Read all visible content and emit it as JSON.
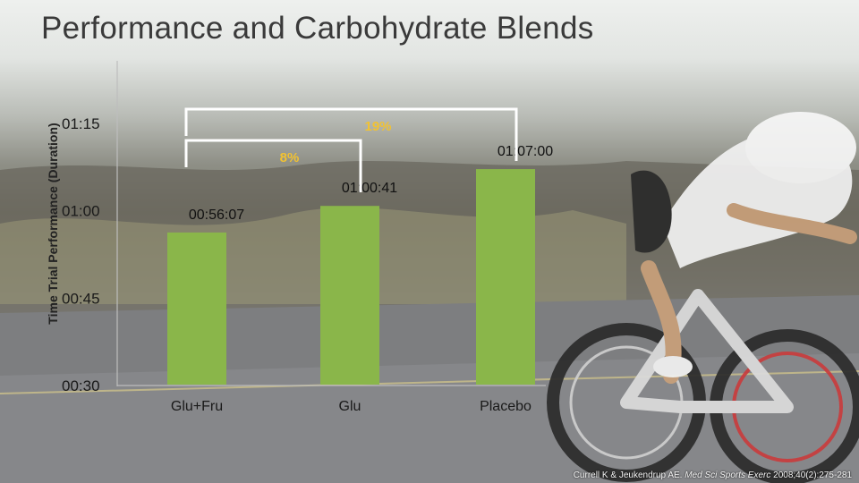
{
  "slide": {
    "title": "Performance and Carbohydrate Blends",
    "citation_authors": "Currell K & Jeukendrup AE.",
    "citation_journal": "Med Sci Sports Exerc",
    "citation_details": " 2008;40(2):275-281"
  },
  "colors": {
    "bar": "#8ab64a",
    "bracket": "#ffffff",
    "percent": "#f1c232",
    "axis_text": "#1a1a1a",
    "title": "#3a3a3a"
  },
  "chart_data": {
    "type": "bar",
    "title": "Performance and Carbohydrate Blends",
    "ylabel": "Time Trial Performance (Duration)",
    "xlabel": "",
    "categories": [
      "Glu+Fru",
      "Glu",
      "Placebo"
    ],
    "values_seconds": [
      3367,
      3641,
      4020
    ],
    "data_labels": [
      "00:56:07",
      "01:00:41",
      "01:07:00"
    ],
    "ylim_seconds": [
      1800,
      4500
    ],
    "yticks_seconds": [
      1800,
      2700,
      3600,
      4500
    ],
    "ytick_labels": [
      "00:30",
      "00:45",
      "01:00",
      "01:15"
    ],
    "grid": false,
    "annotations": [
      {
        "from": "Glu+Fru",
        "to": "Placebo",
        "label": "19%"
      },
      {
        "from": "Glu+Fru",
        "to": "Glu",
        "label": "8%"
      }
    ]
  }
}
